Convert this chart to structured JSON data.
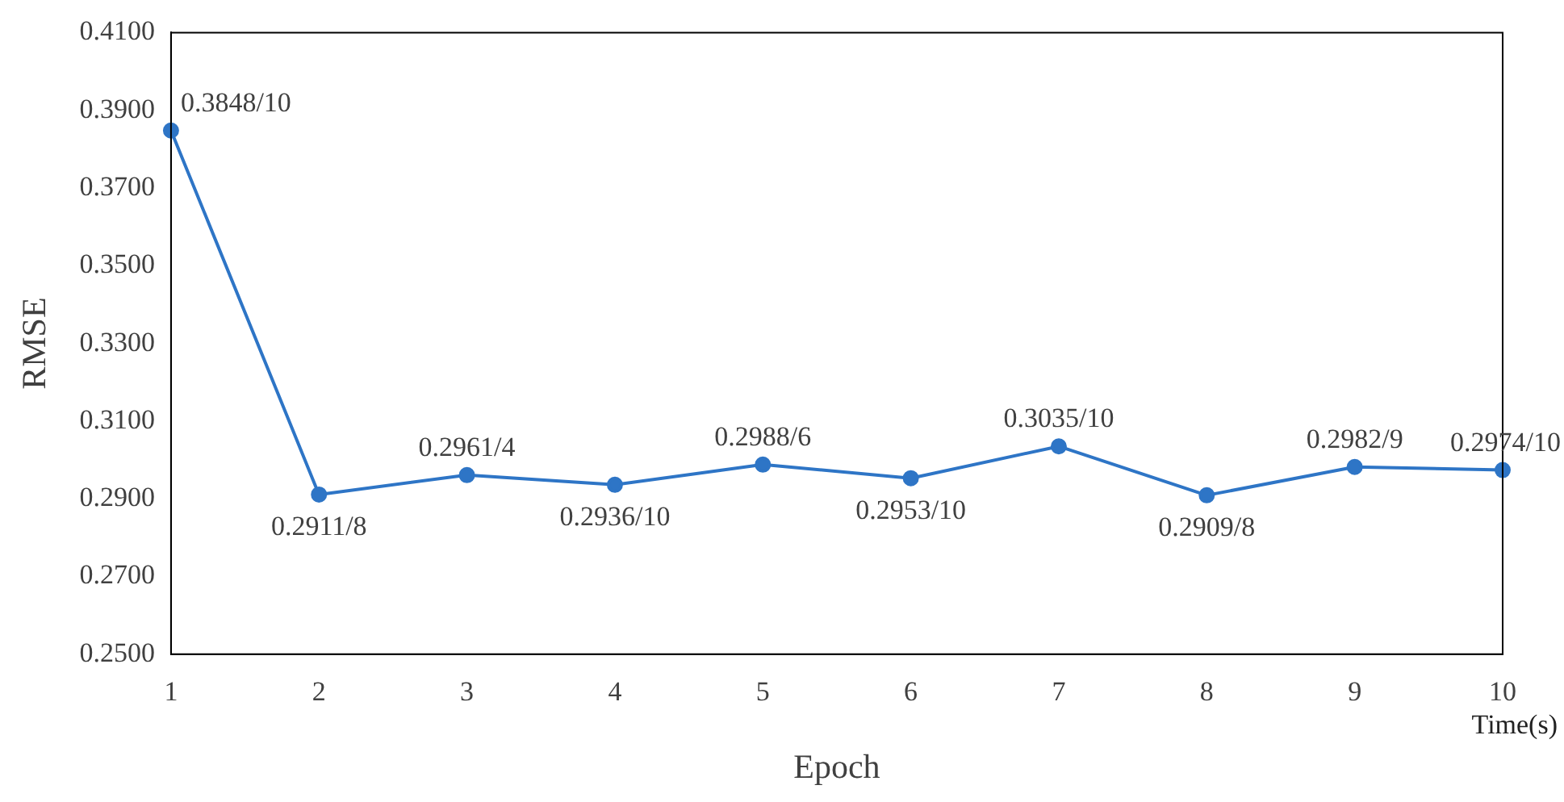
{
  "chart_data": {
    "type": "line",
    "xlabel": "Epoch",
    "ylabel": "RMSE",
    "categories": [
      "1",
      "2",
      "3",
      "4",
      "5",
      "6",
      "7",
      "8",
      "9",
      "10"
    ],
    "series": [
      {
        "color": "#2e75c6",
        "values": [
          0.3848,
          0.2911,
          0.2961,
          0.2936,
          0.2988,
          0.2953,
          0.3035,
          0.2909,
          0.2982,
          0.2974
        ],
        "name": null
      }
    ],
    "ylim": [
      0.25,
      0.41
    ],
    "yticks": [
      {
        "value": 0.25,
        "label": "0.2500"
      },
      {
        "value": 0.27,
        "label": "0.2700"
      },
      {
        "value": 0.29,
        "label": "0.2900"
      },
      {
        "value": 0.31,
        "label": "0.3100"
      },
      {
        "value": 0.33,
        "label": "0.3300"
      },
      {
        "value": 0.35,
        "label": "0.3500"
      },
      {
        "value": 0.37,
        "label": "0.3700"
      },
      {
        "value": 0.39,
        "label": "0.3900"
      },
      {
        "value": 0.41,
        "label": "0.4100"
      }
    ],
    "grid": false,
    "legend": false,
    "marker": "circle",
    "line_style": "solid",
    "annotations": [
      {
        "text": "0.3848/10",
        "x": "1",
        "y": 0.3848
      },
      {
        "text": "0.2911/8",
        "x": "2",
        "y": 0.2911
      },
      {
        "text": "0.2961/4",
        "x": "3",
        "y": 0.2961
      },
      {
        "text": "0.2936/10",
        "x": "4",
        "y": 0.2936
      },
      {
        "text": "0.2988/6",
        "x": "5",
        "y": 0.2988
      },
      {
        "text": "0.2953/10",
        "x": "6",
        "y": 0.2953
      },
      {
        "text": "0.3035/10",
        "x": "7",
        "y": 0.3035
      },
      {
        "text": "0.2909/8",
        "x": "8",
        "y": 0.2909
      },
      {
        "text": "0.2982/9",
        "x": "9",
        "y": 0.2982
      },
      {
        "text": "0.2974/10",
        "x": "10",
        "y": 0.2974
      },
      "Time(s)"
    ]
  }
}
